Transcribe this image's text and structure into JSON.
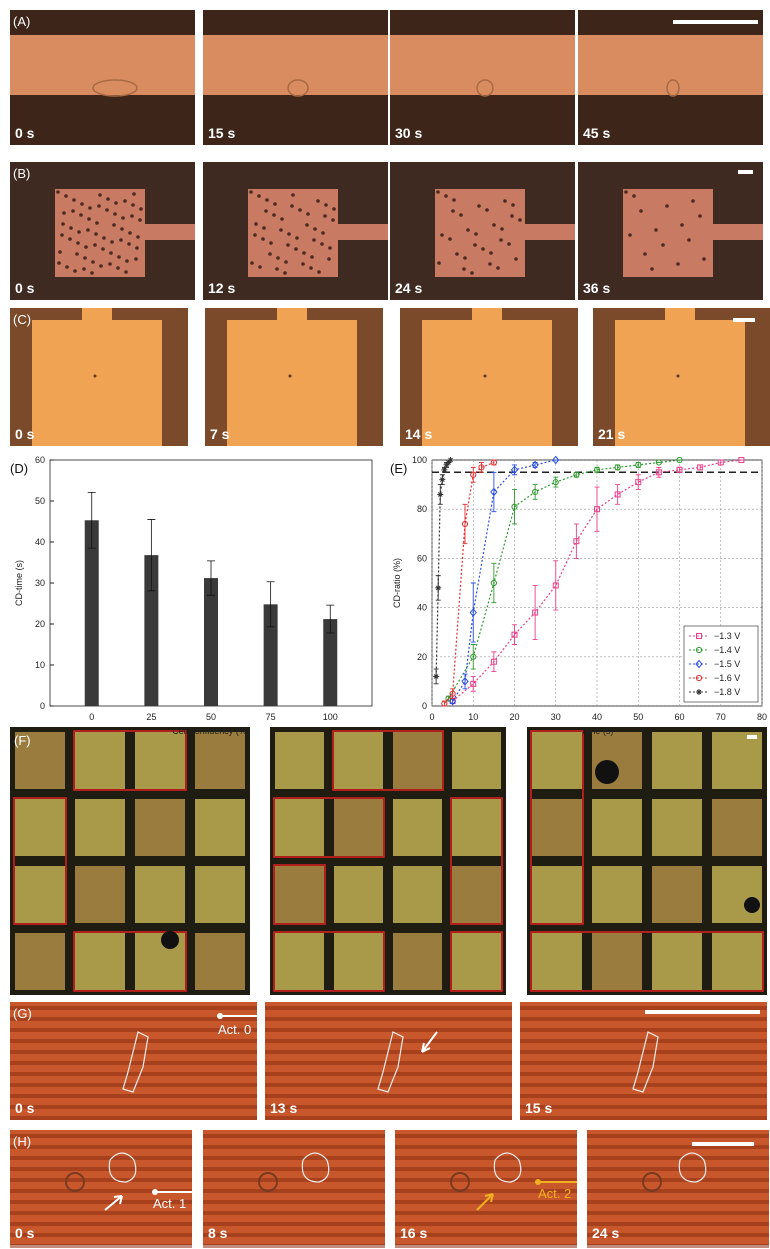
{
  "panels": {
    "A": {
      "label": "(A)",
      "times": [
        "0 s",
        "15 s",
        "30 s",
        "45 s"
      ]
    },
    "B": {
      "label": "(B)",
      "times": [
        "0 s",
        "12 s",
        "24 s",
        "36 s"
      ]
    },
    "C": {
      "label": "(C)",
      "times": [
        "0 s",
        "7 s",
        "14 s",
        "21 s"
      ]
    },
    "F": {
      "label": "(F)"
    },
    "G": {
      "label": "(G)",
      "times": [
        "0 s",
        "13 s",
        "15 s"
      ],
      "annotation": "Act. 0"
    },
    "H": {
      "label": "(H)",
      "times": [
        "0 s",
        "8 s",
        "16 s",
        "24 s"
      ],
      "annotations": [
        "Act. 1",
        "Act. 2"
      ]
    }
  },
  "chart_data": [
    {
      "type": "bar",
      "panel_label": "(D)",
      "x_label": "Cell confluency (%)",
      "y_label": "CD-time (s)",
      "categories": [
        "0",
        "25",
        "50",
        "75",
        "100"
      ],
      "values": [
        45.3,
        36.8,
        31.2,
        24.8,
        21.2
      ],
      "errors": [
        6.8,
        8.7,
        4.2,
        5.5,
        3.4
      ],
      "color": "#3a3a3a",
      "ylim": [
        0,
        60
      ],
      "yticks": [
        0,
        10,
        20,
        30,
        40,
        50,
        60
      ]
    },
    {
      "type": "line",
      "panel_label": "(E)",
      "x_label": "Time (s)",
      "y_label": "CD-ratio (%)",
      "xlim": [
        0,
        80
      ],
      "xticks": [
        0,
        10,
        20,
        30,
        40,
        50,
        60,
        70,
        80
      ],
      "ylim": [
        0,
        100
      ],
      "yticks": [
        0,
        20,
        40,
        60,
        80,
        100
      ],
      "grid": true,
      "legend": "bottom-right",
      "reference_line": 95,
      "series": [
        {
          "name": "−1.3 V",
          "color": "#e8408a",
          "marker": "square",
          "x": [
            5,
            10,
            15,
            20,
            25,
            30,
            35,
            40,
            45,
            50,
            55,
            60,
            65,
            70,
            75
          ],
          "values": [
            2,
            9,
            18,
            29,
            38,
            49,
            67,
            80,
            86,
            91,
            95,
            96,
            97,
            99,
            100
          ],
          "errors": [
            1,
            3,
            4,
            4,
            11,
            10,
            7,
            9,
            4,
            3,
            2,
            1,
            1,
            1,
            0
          ]
        },
        {
          "name": "−1.4 V",
          "color": "#2e9a2e",
          "marker": "circle",
          "x": [
            4,
            10,
            15,
            20,
            25,
            30,
            35,
            40,
            45,
            50,
            55,
            60
          ],
          "values": [
            3,
            20,
            50,
            81,
            87,
            91,
            94,
            96,
            97,
            98,
            99,
            100
          ],
          "errors": [
            1,
            5,
            8,
            7,
            3,
            2,
            1,
            1,
            1,
            1,
            0,
            0
          ]
        },
        {
          "name": "−1.5 V",
          "color": "#2a4fe0",
          "marker": "diamond",
          "x": [
            5,
            8,
            10,
            15,
            20,
            25,
            30
          ],
          "values": [
            2,
            10,
            38,
            87,
            96,
            98,
            100
          ],
          "errors": [
            1,
            3,
            12,
            8,
            2,
            1,
            0
          ]
        },
        {
          "name": "−1.6 V",
          "color": "#e03030",
          "marker": "circle",
          "x": [
            3,
            5,
            8,
            10,
            12,
            15
          ],
          "values": [
            1,
            5,
            74,
            94,
            97,
            99
          ],
          "errors": [
            1,
            2,
            8,
            3,
            2,
            1
          ]
        },
        {
          "name": "−1.8 V",
          "color": "#333333",
          "marker": "star",
          "x": [
            1,
            1.5,
            2,
            2.5,
            3,
            3.5,
            4,
            4.5
          ],
          "values": [
            12,
            48,
            86,
            92,
            96,
            98,
            99,
            100
          ],
          "errors": [
            3,
            5,
            4,
            2,
            1,
            1,
            0,
            0
          ]
        }
      ]
    }
  ]
}
